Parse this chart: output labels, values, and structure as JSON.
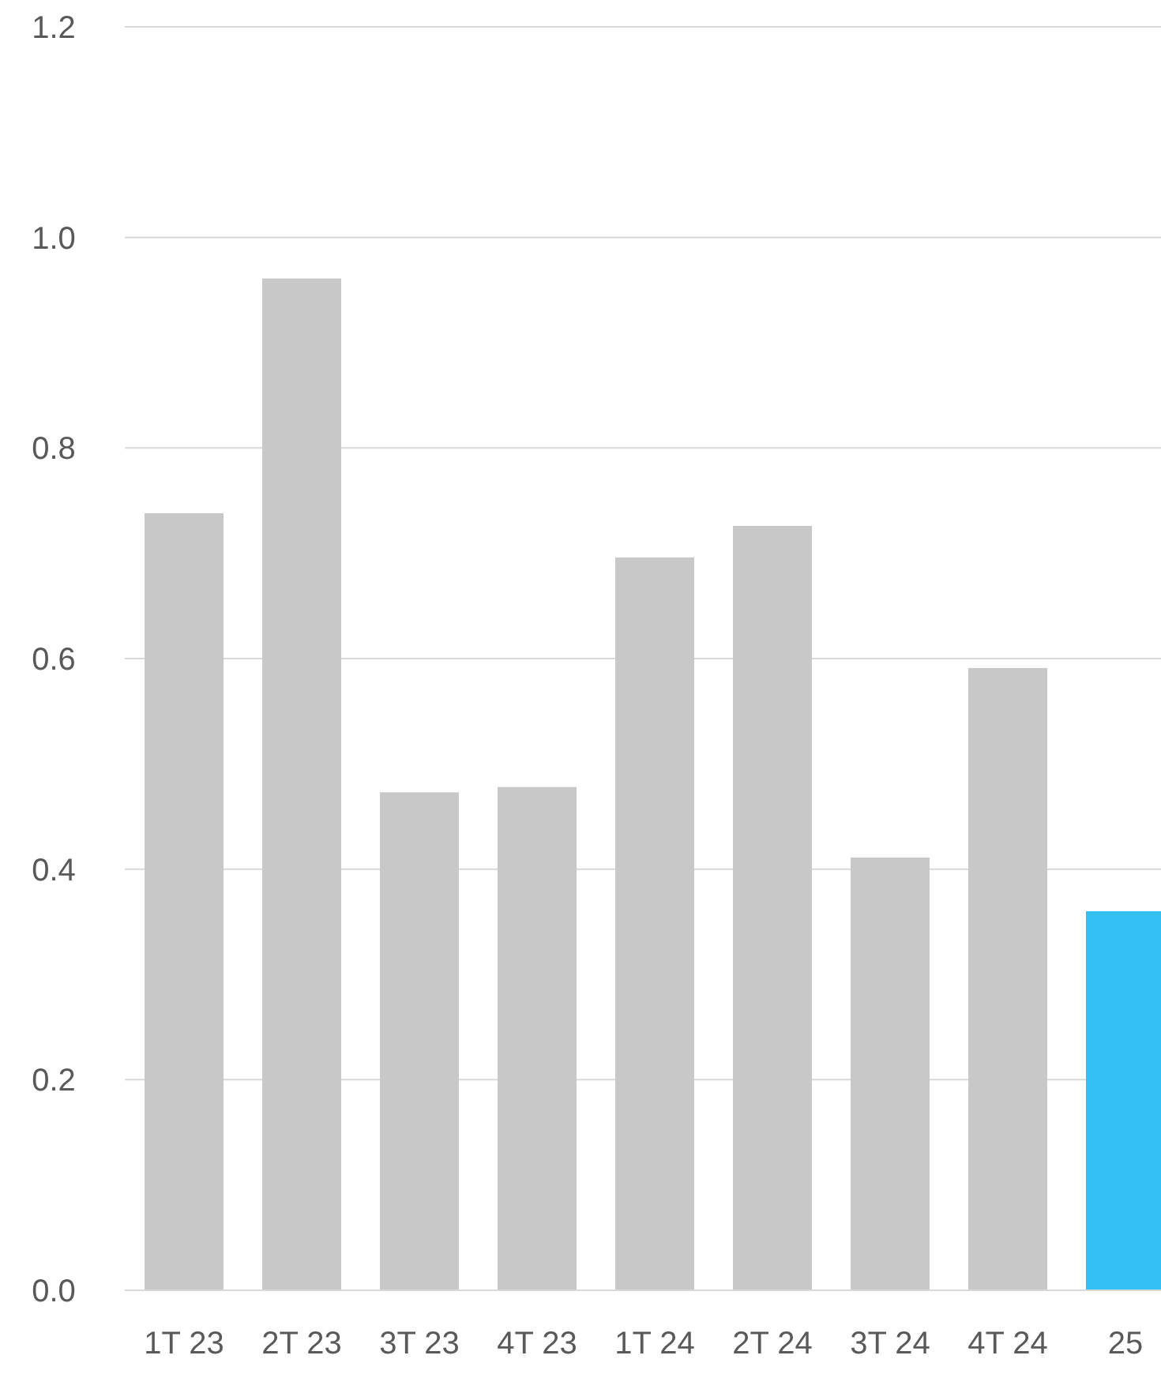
{
  "chart_data": {
    "type": "bar",
    "categories": [
      "1T 23",
      "2T 23",
      "3T 23",
      "4T 23",
      "1T 24",
      "2T 24",
      "3T 24",
      "4T 24",
      "25"
    ],
    "values": [
      0.738,
      0.961,
      0.473,
      0.478,
      0.696,
      0.726,
      0.411,
      0.591,
      0.36
    ],
    "colors": [
      "#c8c8c8",
      "#c8c8c8",
      "#c8c8c8",
      "#c8c8c8",
      "#c8c8c8",
      "#c8c8c8",
      "#c8c8c8",
      "#c8c8c8",
      "#33bff2"
    ],
    "ylim": [
      0,
      1.2
    ],
    "yticks": [
      {
        "value": 0,
        "label": "0.0"
      },
      {
        "value": 0.2,
        "label": "0.2"
      },
      {
        "value": 0.4,
        "label": "0.4"
      },
      {
        "value": 0.6,
        "label": "0.6"
      },
      {
        "value": 0.8,
        "label": "0.8"
      },
      {
        "value": 1,
        "label": "1.0"
      },
      {
        "value": 1.2,
        "label": "1.2"
      }
    ],
    "grid": "y"
  }
}
